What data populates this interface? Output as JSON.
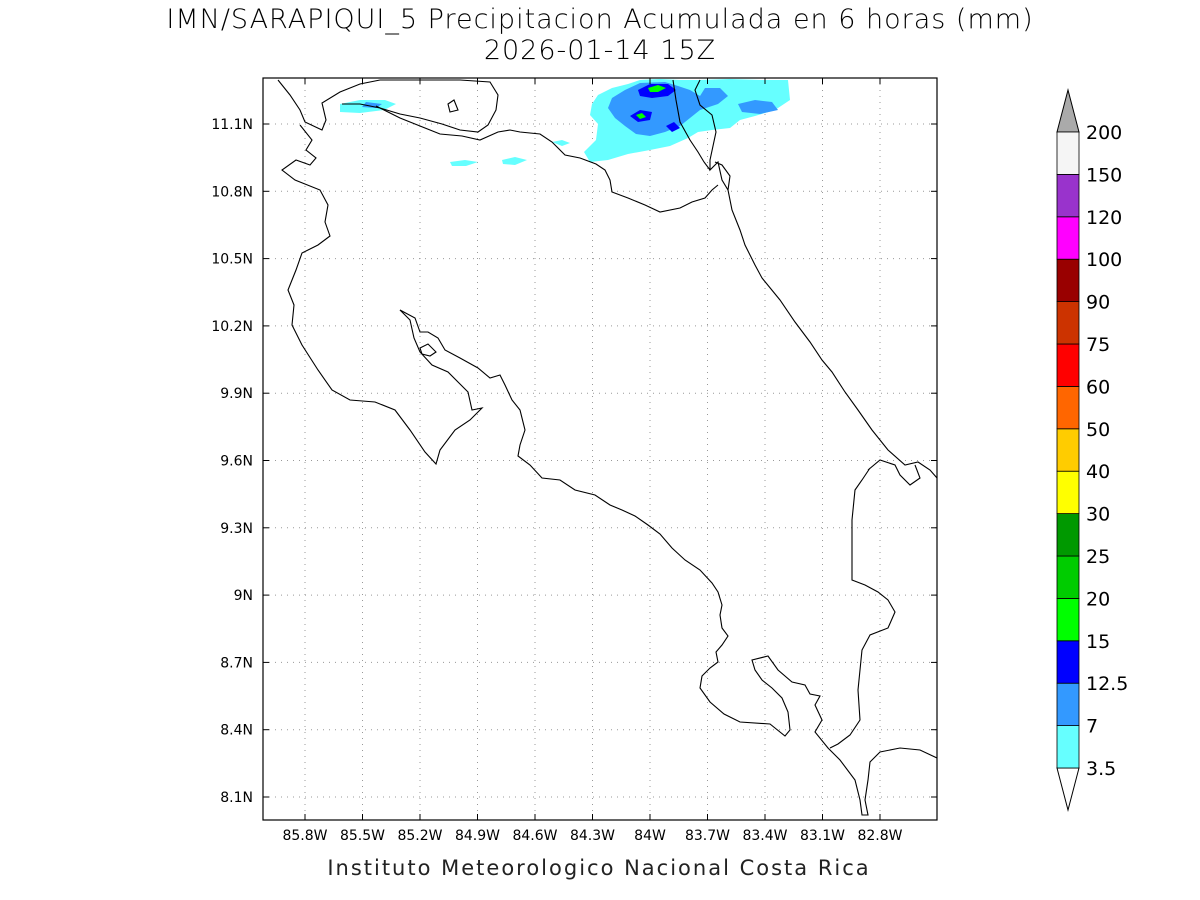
{
  "title": {
    "line1": "IMN/SARAPIQUI_5 Precipitacion Acumulada en 6 horas (mm)",
    "line2": "2026-01-14 15Z"
  },
  "credit": "Instituto Meteorologico Nacional Costa Rica",
  "map": {
    "lon_labels": [
      "85.8W",
      "85.5W",
      "85.2W",
      "84.9W",
      "84.6W",
      "84.3W",
      "84W",
      "83.7W",
      "83.4W",
      "83.1W",
      "82.8W"
    ],
    "lat_labels": [
      "11.1N",
      "10.8N",
      "10.5N",
      "10.2N",
      "9.9N",
      "9.6N",
      "9.3N",
      "9N",
      "8.7N",
      "8.4N",
      "8.1N"
    ],
    "grid": true
  },
  "colorbar": {
    "levels": [
      "3.5",
      "7",
      "12.5",
      "15",
      "20",
      "25",
      "30",
      "40",
      "50",
      "60",
      "75",
      "90",
      "100",
      "120",
      "150",
      "200"
    ],
    "colors": [
      "#66ffff",
      "#3399ff",
      "#0000ff",
      "#00ff00",
      "#00cc00",
      "#009900",
      "#ffff00",
      "#ffcc00",
      "#ff6600",
      "#ff0000",
      "#cc3300",
      "#990000",
      "#ff00ff",
      "#9933cc",
      "#f5f5f5",
      "#aaaaaa"
    ]
  }
}
